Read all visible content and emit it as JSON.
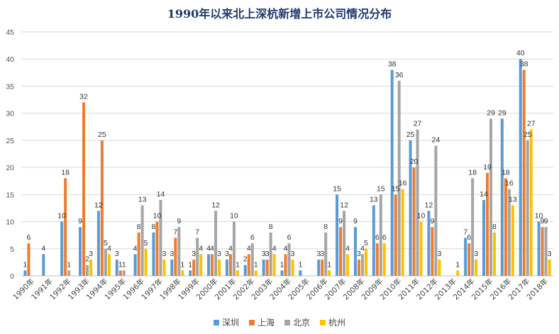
{
  "chart_data": {
    "type": "bar",
    "title": "1990年以来北上深杭新增上市公司情况分布",
    "xlabel": "",
    "ylabel": "",
    "ylim": [
      0,
      45
    ],
    "yticks": [
      0,
      5,
      10,
      15,
      20,
      25,
      30,
      35,
      40,
      45
    ],
    "grid": true,
    "legend_position": "bottom",
    "categories": [
      "1990年",
      "1991年",
      "1992年",
      "1993年",
      "1994年",
      "1995年",
      "1996年",
      "1997年",
      "1998年",
      "1999年",
      "2000年",
      "2001年",
      "2002年",
      "2003年",
      "2004年",
      "2005年",
      "2006年",
      "2007年",
      "2008年",
      "2009年",
      "2010年",
      "2011年",
      "2012年",
      "2013年",
      "2014年",
      "2015年",
      "2016年",
      "2017年",
      "2018年"
    ],
    "series": [
      {
        "name": "深圳",
        "color": "#5b9bd5",
        "values": [
          1,
          4,
          10,
          9,
          12,
          3,
          4,
          8,
          3,
          1,
          4,
          3,
          2,
          3,
          1,
          1,
          3,
          15,
          9,
          13,
          38,
          25,
          12,
          null,
          7,
          14,
          29,
          40,
          10
        ]
      },
      {
        "name": "上海",
        "color": "#ed7d31",
        "values": [
          6,
          null,
          18,
          32,
          25,
          1,
          8,
          10,
          7,
          3,
          4,
          4,
          4,
          3,
          4,
          null,
          3,
          9,
          3,
          6,
          15,
          20,
          9,
          null,
          6,
          19,
          18,
          38,
          9
        ]
      },
      {
        "name": "北京",
        "color": "#a5a5a5",
        "values": [
          null,
          null,
          1,
          2,
          5,
          1,
          13,
          14,
          9,
          7,
          12,
          10,
          6,
          8,
          6,
          null,
          8,
          12,
          4,
          15,
          36,
          27,
          24,
          null,
          18,
          29,
          16,
          25,
          9
        ]
      },
      {
        "name": "杭州",
        "color": "#ffc000",
        "values": [
          null,
          null,
          null,
          3,
          4,
          null,
          5,
          3,
          1,
          4,
          3,
          1,
          1,
          4,
          3,
          null,
          1,
          4,
          5,
          6,
          16,
          10,
          3,
          1,
          3,
          8,
          13,
          27,
          3
        ]
      }
    ]
  }
}
